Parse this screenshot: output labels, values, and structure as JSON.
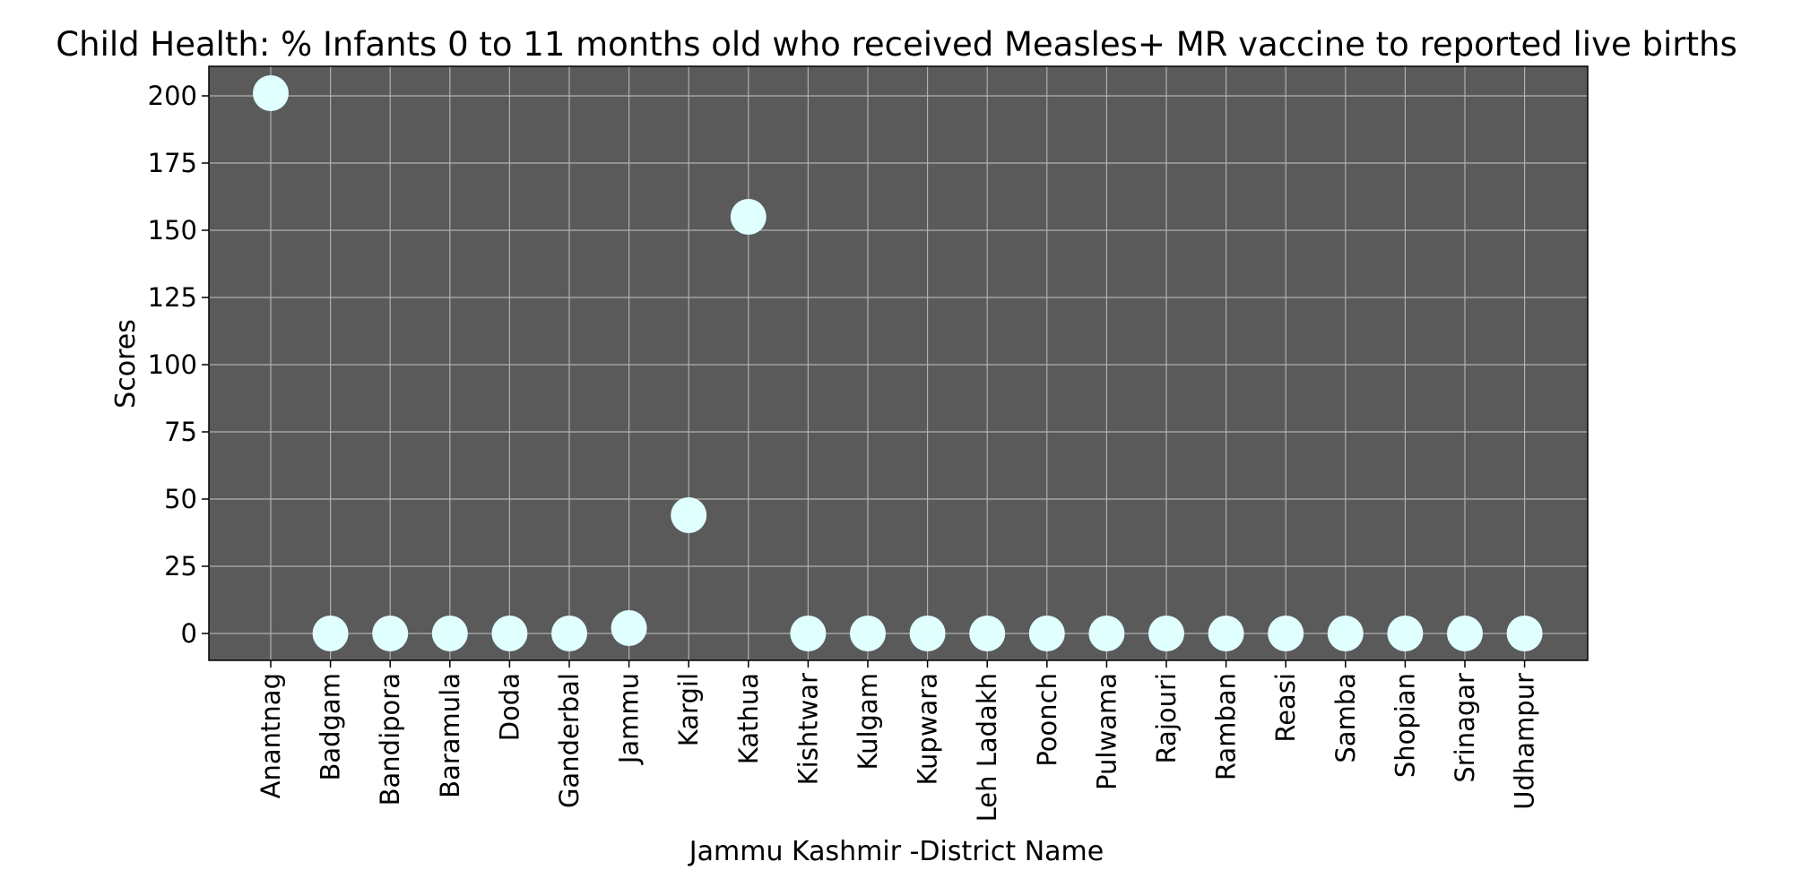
{
  "chart_data": {
    "type": "scatter",
    "title": "Child Health: % Infants 0 to 11 months old who received Measles+ MR vaccine to reported live births",
    "xlabel": "Jammu Kashmir -District Name",
    "ylabel": "Scores",
    "ylim": [
      -10,
      211
    ],
    "yticks": [
      0,
      25,
      50,
      75,
      100,
      125,
      150,
      175,
      200
    ],
    "grid": true,
    "colors": {
      "background": "#5a5a5a",
      "marker": "#e0ffff",
      "grid": "#b0b0b0"
    },
    "categories": [
      "Anantnag",
      "Badgam",
      "Bandipora",
      "Baramula",
      "Doda",
      "Ganderbal",
      "Jammu",
      "Kargil",
      "Kathua",
      "Kishtwar",
      "Kulgam",
      "Kupwara",
      "Leh Ladakh",
      "Poonch",
      "Pulwama",
      "Rajouri",
      "Ramban",
      "Reasi",
      "Samba",
      "Shopian",
      "Srinagar",
      "Udhampur"
    ],
    "values": [
      201,
      0,
      0,
      0,
      0,
      0,
      2,
      44,
      155,
      0,
      0,
      0,
      0,
      0,
      0,
      0,
      0,
      0,
      0,
      0,
      0,
      0
    ]
  }
}
